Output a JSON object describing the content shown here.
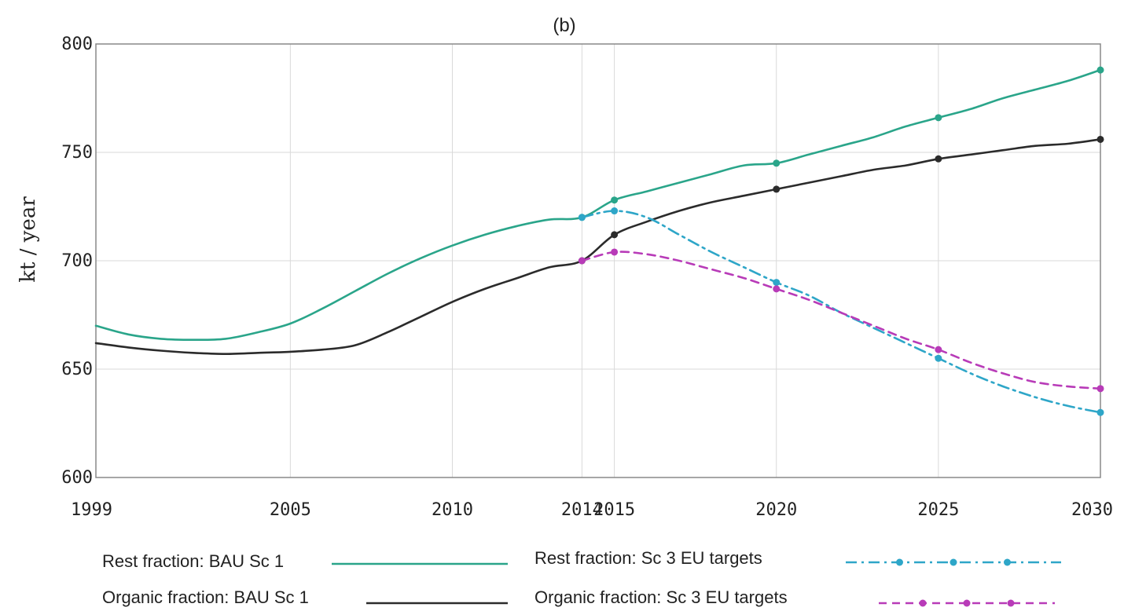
{
  "chart_data": {
    "type": "line",
    "title": "(b)",
    "xlabel": "",
    "ylabel": "kt / year",
    "xlim": [
      1999,
      2030
    ],
    "ylim": [
      600,
      800
    ],
    "xticks": [
      1999,
      2005,
      2010,
      2014,
      2015,
      2020,
      2025,
      2030
    ],
    "yticks": [
      600,
      650,
      700,
      750,
      800
    ],
    "grid": true,
    "legend_position": "bottom",
    "series": [
      {
        "name": "Rest fraction: BAU Sc 1",
        "color": "#2aa58a",
        "style": "solid",
        "x": [
          1999,
          2000,
          2001,
          2002,
          2003,
          2004,
          2005,
          2006,
          2007,
          2008,
          2009,
          2010,
          2011,
          2012,
          2013,
          2014,
          2015,
          2016,
          2017,
          2018,
          2019,
          2020,
          2021,
          2022,
          2023,
          2024,
          2025,
          2026,
          2027,
          2028,
          2029,
          2030
        ],
        "y": [
          670,
          666,
          664,
          663.5,
          664,
          667,
          671,
          678,
          686,
          694,
          701,
          707,
          712,
          716,
          719,
          720,
          728,
          732,
          736,
          740,
          744,
          745,
          749,
          753,
          757,
          762,
          766,
          770,
          775,
          779,
          783,
          788
        ],
        "markers_x": [
          2014,
          2015,
          2020,
          2025,
          2030
        ]
      },
      {
        "name": "Organic fraction: BAU Sc 1",
        "color": "#2b2b2b",
        "style": "solid",
        "x": [
          1999,
          2000,
          2001,
          2002,
          2003,
          2004,
          2005,
          2006,
          2007,
          2008,
          2009,
          2010,
          2011,
          2012,
          2013,
          2014,
          2015,
          2016,
          2017,
          2018,
          2019,
          2020,
          2021,
          2022,
          2023,
          2024,
          2025,
          2026,
          2027,
          2028,
          2029,
          2030
        ],
        "y": [
          662,
          660,
          658.5,
          657.5,
          657,
          657.5,
          658,
          659,
          661,
          667,
          674,
          681,
          687,
          692,
          697,
          700,
          712,
          718,
          723,
          727,
          730,
          733,
          736,
          739,
          742,
          744,
          747,
          749,
          751,
          753,
          754,
          756
        ],
        "markers_x": [
          2014,
          2015,
          2020,
          2025,
          2030
        ]
      },
      {
        "name": "Rest fraction: Sc 3 EU targets",
        "color": "#2ea6c8",
        "style": "dashdot",
        "x": [
          2014,
          2015,
          2016,
          2017,
          2018,
          2019,
          2020,
          2021,
          2022,
          2023,
          2024,
          2025,
          2026,
          2027,
          2028,
          2029,
          2030
        ],
        "y": [
          720,
          723,
          720,
          712,
          704,
          697,
          690,
          684,
          676,
          669,
          662,
          655,
          648,
          642,
          637,
          633,
          630
        ],
        "markers_x": [
          2014,
          2015,
          2020,
          2025,
          2030
        ]
      },
      {
        "name": "Organic fraction: Sc 3  EU targets",
        "color": "#b83bb8",
        "style": "dashed",
        "x": [
          2014,
          2015,
          2016,
          2017,
          2018,
          2019,
          2020,
          2021,
          2022,
          2023,
          2024,
          2025,
          2026,
          2027,
          2028,
          2029,
          2030
        ],
        "y": [
          700,
          704,
          703,
          700,
          696,
          692,
          687,
          682,
          676,
          670,
          664,
          659,
          653,
          648,
          644,
          642,
          641
        ],
        "markers_x": [
          2014,
          2015,
          2020,
          2025,
          2030
        ]
      }
    ]
  }
}
